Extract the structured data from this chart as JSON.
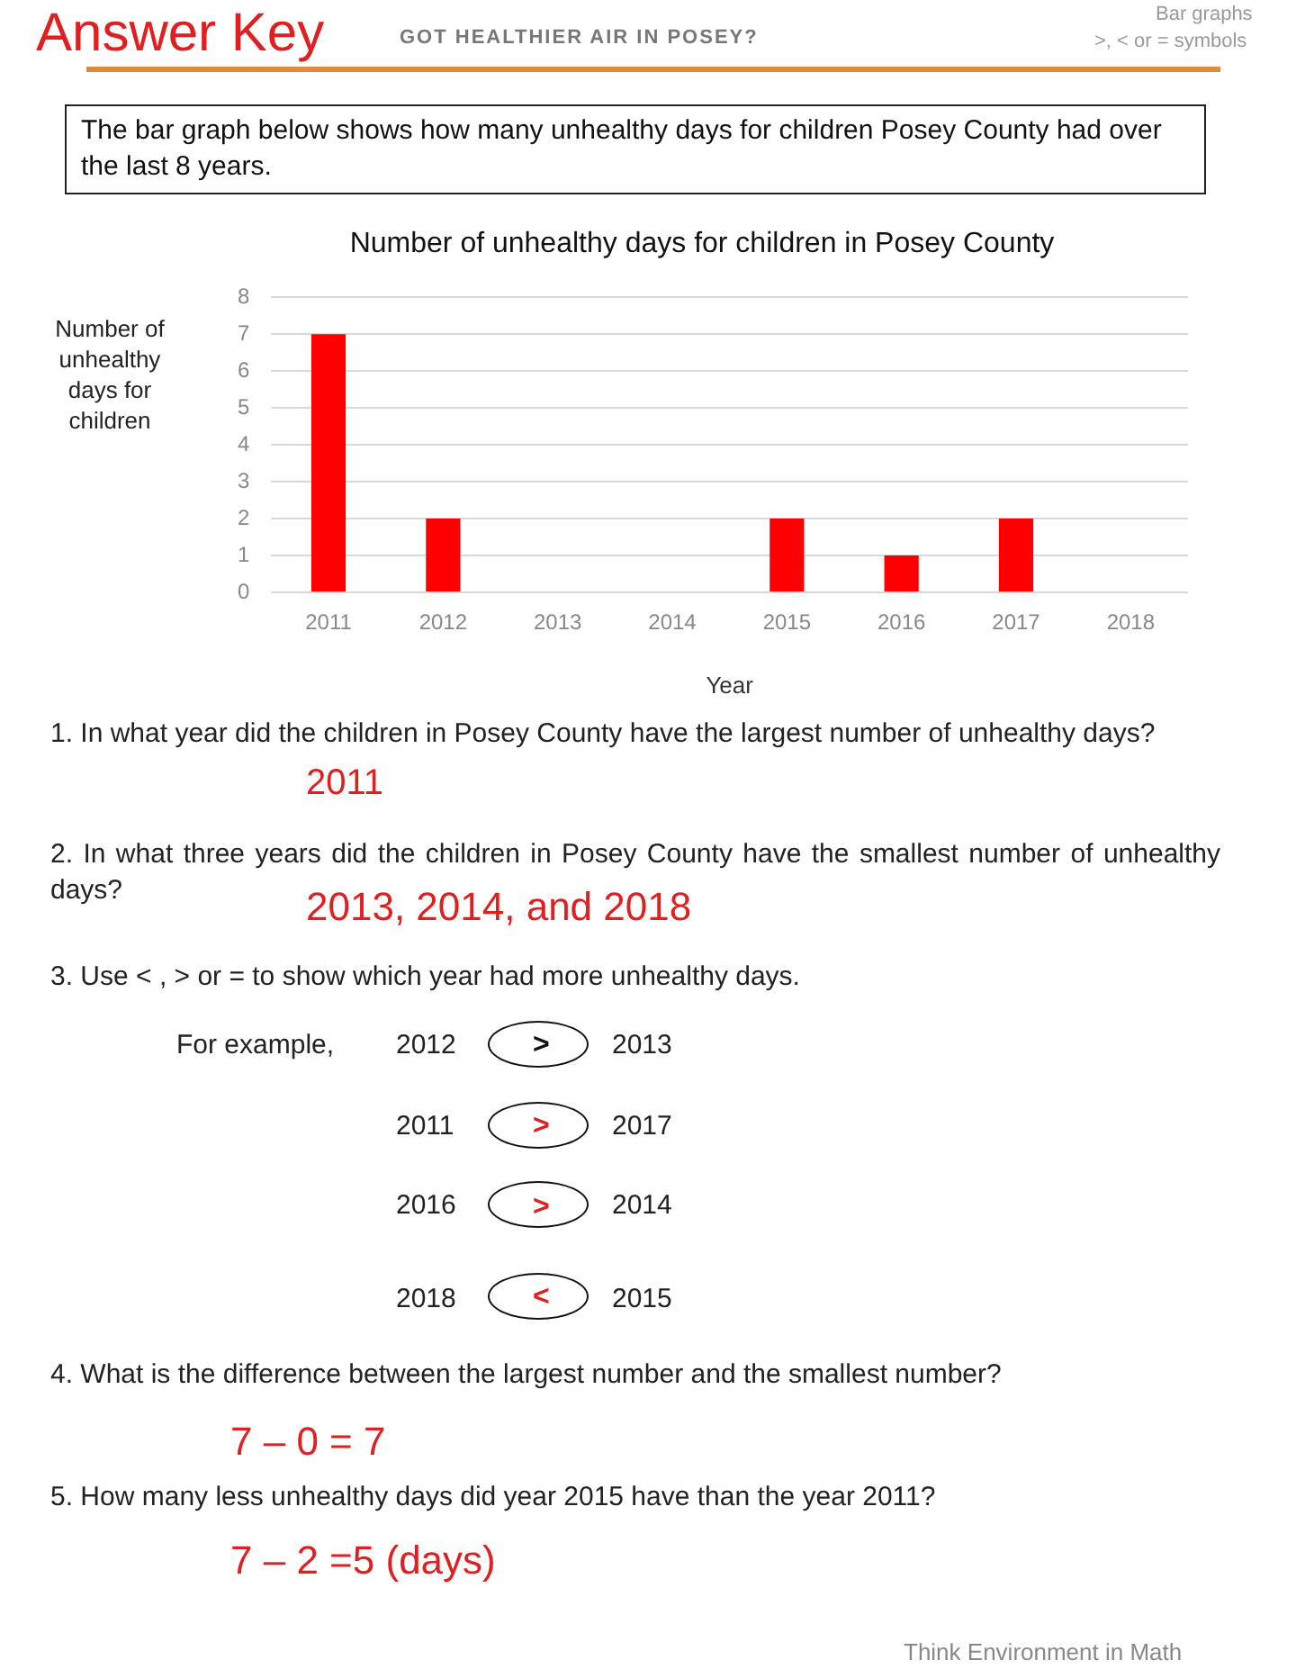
{
  "chart_data": {
    "type": "bar",
    "title": "Number of unhealthy days for children in Posey County",
    "xlabel": "Year",
    "ylabel": "Number of unhealthy days for children",
    "categories": [
      "2011",
      "2012",
      "2013",
      "2014",
      "2015",
      "2016",
      "2017",
      "2018"
    ],
    "values": [
      7,
      2,
      0,
      0,
      2,
      1,
      2,
      0
    ],
    "color": "#ff0000",
    "ylim": [
      0,
      8
    ],
    "yticks": [
      0,
      1,
      2,
      3,
      4,
      5,
      6,
      7,
      8
    ],
    "grid": "y",
    "annotations": [
      "Answer Key",
      "GOT HEALTHIER AIR IN POSEY?",
      "Bar graphs",
      ">, < or = symbols",
      "The bar graph below shows how many unhealthy days for children Posey County had over the last 8 years.",
      "1. In what year did the children in Posey County have the largest number of unhealthy days?",
      "2011",
      "2. In what three years did the children in Posey County have the smallest number of unhealthy days?",
      "2013, 2014, and 2018",
      "3. Use < , > or = to show which year had more unhealthy days.",
      "For example,",
      "2012",
      ">",
      "2013",
      "2011",
      ">",
      "2017",
      "2016",
      ">",
      "2014",
      "2018",
      "<",
      "2015",
      "4. What is the difference between the largest number and the smallest number?",
      "7 – 0 = 7",
      "5. How many less unhealthy days did year 2015 have than the year 2011?",
      "7 – 2 =5 (days)",
      "Think Environment in Math"
    ]
  }
}
